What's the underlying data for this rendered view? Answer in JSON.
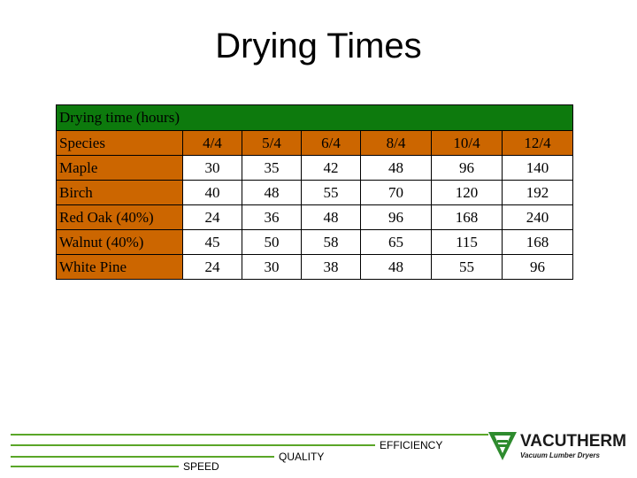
{
  "title": "Drying Times",
  "table": {
    "caption": "Drying time (hours)",
    "species_header": "Species",
    "columns": [
      "4/4",
      "5/4",
      "6/4",
      "8/4",
      "10/4",
      "12/4"
    ],
    "rows": [
      {
        "species": "Maple",
        "values": [
          "30",
          "35",
          "42",
          "48",
          "96",
          "140"
        ]
      },
      {
        "species": "Birch",
        "values": [
          "40",
          "48",
          "55",
          "70",
          "120",
          "192"
        ]
      },
      {
        "species": "Red Oak (40%)",
        "values": [
          "24",
          "36",
          "48",
          "96",
          "168",
          "240"
        ]
      },
      {
        "species": "Walnut (40%)",
        "values": [
          "45",
          "50",
          "58",
          "65",
          "115",
          "168"
        ]
      },
      {
        "species": "White Pine",
        "values": [
          "24",
          "30",
          "38",
          "48",
          "55",
          "96"
        ]
      }
    ],
    "colors": {
      "caption_bg": "#0d7a0d",
      "header_bg": "#cc6600"
    }
  },
  "footer": {
    "labels": {
      "efficiency": "EFFICIENCY",
      "quality": "QUALITY",
      "speed": "SPEED"
    },
    "line_color": "#5aa628"
  },
  "logo": {
    "name": "VACUTHERM",
    "tagline": "Vacuum Lumber Dryers",
    "icon": "vacutherm-v-logo-icon",
    "color": "#2e8b2e"
  }
}
